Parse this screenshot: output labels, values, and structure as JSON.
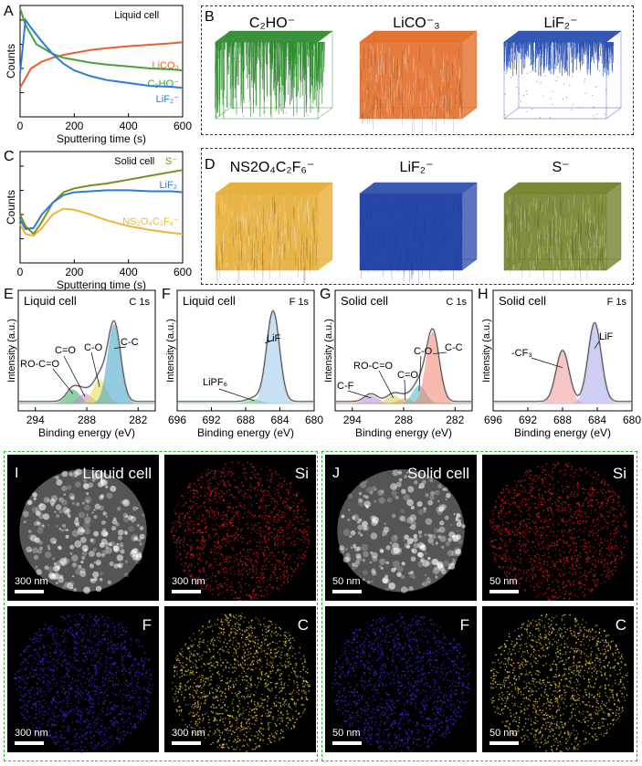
{
  "panel_letters": {
    "a": "A",
    "b": "B",
    "c": "C",
    "d": "D",
    "e": "E",
    "f": "F",
    "g": "G",
    "h": "H",
    "i": "I",
    "j": "J"
  },
  "colors": {
    "licO3": "#e8612c",
    "c2ho": "#3fa535",
    "lif": "#2e7bd8",
    "s_olive": "#7a8f1a",
    "lif_solid": "#2e7bd8",
    "ns2o4": "#f0b43a",
    "tof_green": "#2e8b2e",
    "tof_orange": "#e0641c",
    "tof_blue": "#2a4fb0",
    "tof_navy": "#2747a8",
    "tof_gold": "#e4a82a",
    "tof_olive": "#6b7a1f",
    "eds_red": "#e01818",
    "eds_violet": "#4a22d8",
    "eds_yellow": "#e8c436",
    "dash": "#3ab03a"
  },
  "chart_data": [
    {
      "type": "line",
      "panel": "A",
      "inset_text": "Liquid cell",
      "xlabel": "Sputtering time (s)",
      "ylabel": "Counts",
      "xlim": [
        0,
        600
      ],
      "xticks": [
        "0",
        "200",
        "400",
        "600"
      ],
      "series": [
        {
          "name": "LiCO₃",
          "x": [
            0,
            40,
            80,
            120,
            160,
            200,
            260,
            320,
            400,
            480,
            560,
            600
          ],
          "y": [
            0.3,
            0.5,
            0.57,
            0.61,
            0.64,
            0.66,
            0.69,
            0.71,
            0.73,
            0.745,
            0.76,
            0.77
          ]
        },
        {
          "name": "C₂HO⁻",
          "x": [
            0,
            20,
            60,
            120,
            160,
            200,
            260,
            320,
            400,
            480,
            560,
            600
          ],
          "y": [
            1.12,
            0.95,
            0.75,
            0.65,
            0.61,
            0.59,
            0.56,
            0.54,
            0.52,
            0.5,
            0.49,
            0.48
          ]
        },
        {
          "name": "LiF₂⁻",
          "x": [
            0,
            20,
            40,
            80,
            120,
            160,
            200,
            260,
            320,
            400,
            480,
            560,
            600
          ],
          "y": [
            0.45,
            1.0,
            0.92,
            0.78,
            0.65,
            0.55,
            0.48,
            0.42,
            0.38,
            0.35,
            0.32,
            0.31,
            0.3
          ]
        }
      ]
    },
    {
      "type": "line",
      "panel": "C",
      "inset_text": "Solid cell",
      "xlabel": "Sputtering time (s)",
      "ylabel": "Counts",
      "xlim": [
        0,
        600
      ],
      "xticks": [
        "0",
        "200",
        "400",
        "600"
      ],
      "series": [
        {
          "name": "S⁻",
          "x": [
            0,
            20,
            50,
            80,
            120,
            160,
            200,
            260,
            320,
            400,
            480,
            560,
            600
          ],
          "y": [
            0.5,
            0.38,
            0.3,
            0.42,
            0.62,
            0.73,
            0.77,
            0.8,
            0.82,
            0.86,
            0.9,
            0.94,
            0.96
          ]
        },
        {
          "name": "LiF₂",
          "x": [
            0,
            20,
            50,
            80,
            120,
            160,
            200,
            260,
            320,
            400,
            480,
            560,
            600
          ],
          "y": [
            0.45,
            0.35,
            0.36,
            0.5,
            0.62,
            0.7,
            0.73,
            0.74,
            0.75,
            0.75,
            0.74,
            0.74,
            0.73
          ]
        },
        {
          "name": "NS₂O₄C₂F₆⁻",
          "x": [
            0,
            20,
            50,
            80,
            120,
            160,
            200,
            260,
            320,
            400,
            480,
            560,
            600
          ],
          "y": [
            0.4,
            0.3,
            0.28,
            0.36,
            0.5,
            0.56,
            0.55,
            0.5,
            0.44,
            0.38,
            0.34,
            0.31,
            0.3
          ]
        }
      ]
    },
    {
      "type": "area",
      "panel": "E",
      "title": "Liquid cell",
      "element": "C 1s",
      "xlabel": "Binding energy (eV)",
      "ylabel": "Intensity (a.u.)",
      "xlim": [
        296,
        280
      ],
      "xticks": [
        "294",
        "288",
        "282"
      ],
      "peaks": [
        {
          "name": "RO-C=O",
          "center": 289.6,
          "height": 0.14,
          "color": "#2fae57"
        },
        {
          "name": "C=O",
          "center": 288.2,
          "height": 0.1,
          "color": "#c08ad8"
        },
        {
          "name": "C-O",
          "center": 286.5,
          "height": 0.24,
          "color": "#e6d84a"
        },
        {
          "name": "C-C",
          "center": 284.8,
          "height": 0.8,
          "color": "#3aa0c8"
        }
      ]
    },
    {
      "type": "area",
      "panel": "F",
      "title": "Liquid cell",
      "element": "F 1s",
      "xlabel": "Binding energy (eV)",
      "ylabel": "Intensity (a.u.)",
      "xlim": [
        696,
        680
      ],
      "xticks": [
        "696",
        "692",
        "688",
        "684",
        "680"
      ],
      "peaks": [
        {
          "name": "LiPF₆",
          "center": 687.0,
          "height": 0.04,
          "color": "#5ac05a"
        },
        {
          "name": "LiF",
          "center": 684.8,
          "height": 0.92,
          "color": "#9cc8ea"
        }
      ]
    },
    {
      "type": "area",
      "panel": "G",
      "title": "Solid cell",
      "element": "C 1s",
      "xlabel": "Binding energy (eV)",
      "ylabel": "Intensity (a.u.)",
      "xlim": [
        296,
        280
      ],
      "xticks": [
        "294",
        "288",
        "282"
      ],
      "peaks": [
        {
          "name": "C-F",
          "center": 291.8,
          "height": 0.08,
          "color": "#b58ad8"
        },
        {
          "name": "RO-C=O",
          "center": 289.2,
          "height": 0.08,
          "color": "#d8d04a"
        },
        {
          "name": "C=O",
          "center": 287.8,
          "height": 0.05,
          "color": "#e8a060"
        },
        {
          "name": "C-O",
          "center": 286.2,
          "height": 0.18,
          "color": "#4ab8c8"
        },
        {
          "name": "C-C",
          "center": 284.6,
          "height": 0.72,
          "color": "#f0826e"
        }
      ]
    },
    {
      "type": "area",
      "panel": "H",
      "title": "Solid cell",
      "element": "F 1s",
      "xlabel": "Binding energy (eV)",
      "ylabel": "Intensity (a.u.)",
      "xlim": [
        696,
        680
      ],
      "xticks": [
        "696",
        "692",
        "688",
        "684",
        "680"
      ],
      "peaks": [
        {
          "name": "-CF₃",
          "center": 688.0,
          "height": 0.52,
          "color": "#f29a9a"
        },
        {
          "name": "LiF",
          "center": 684.3,
          "height": 0.8,
          "color": "#a8a8f0"
        }
      ]
    }
  ],
  "tof_b": [
    {
      "label": "C₂HO⁻",
      "color_key": "tof_green",
      "style": "top"
    },
    {
      "label": "LiCO⁻₃",
      "color_key": "tof_orange",
      "style": "full"
    },
    {
      "label": "LiF₂⁻",
      "color_key": "tof_blue",
      "style": "top"
    }
  ],
  "tof_d": [
    {
      "label": "NS2O₄C₂F₆⁻",
      "color_key": "tof_gold",
      "style": "full"
    },
    {
      "label": "LiF₂⁻",
      "color_key": "tof_navy",
      "style": "solid"
    },
    {
      "label": "S⁻",
      "color_key": "tof_olive",
      "style": "full"
    }
  ],
  "eds_i": [
    {
      "label": "Liquid cell",
      "scale": "300 nm",
      "kind": "haadf"
    },
    {
      "label": "Si",
      "scale": "300 nm",
      "kind": "red"
    },
    {
      "label": "F",
      "scale": "300 nm",
      "kind": "violet"
    },
    {
      "label": "C",
      "scale": "300 nm",
      "kind": "yellow"
    }
  ],
  "eds_j": [
    {
      "label": "Solid cell",
      "scale": "50 nm",
      "kind": "haadf"
    },
    {
      "label": "Si",
      "scale": "50 nm",
      "kind": "red"
    },
    {
      "label": "F",
      "scale": "50 nm",
      "kind": "violet"
    },
    {
      "label": "C",
      "scale": "50 nm",
      "kind": "yellow"
    }
  ]
}
